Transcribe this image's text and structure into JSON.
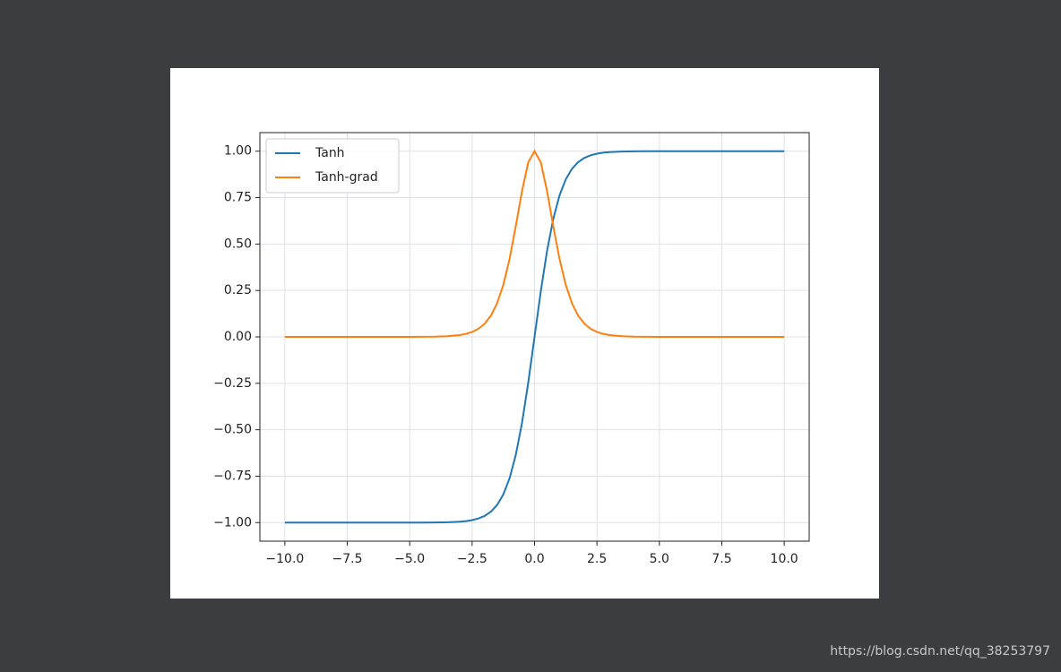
{
  "chart_data": {
    "type": "line",
    "x": [
      -10,
      -9.5,
      -9,
      -8.5,
      -8,
      -7.5,
      -7,
      -6.5,
      -6,
      -5.5,
      -5,
      -4.5,
      -4,
      -3.5,
      -3,
      -2.75,
      -2.5,
      -2.25,
      -2,
      -1.75,
      -1.5,
      -1.25,
      -1,
      -0.75,
      -0.5,
      -0.25,
      0,
      0.25,
      0.5,
      0.75,
      1,
      1.25,
      1.5,
      1.75,
      2,
      2.25,
      2.5,
      2.75,
      3,
      3.5,
      4,
      4.5,
      5,
      5.5,
      6,
      6.5,
      7,
      7.5,
      8,
      8.5,
      9,
      9.5,
      10
    ],
    "series": [
      {
        "name": "Tanh",
        "color": "#1f77b4",
        "values": [
          -1,
          -1,
          -1,
          -1,
          -1,
          -1,
          -1,
          -1,
          -1,
          -1,
          -0.9999,
          -0.9998,
          -0.9993,
          -0.9982,
          -0.9951,
          -0.9919,
          -0.9866,
          -0.978,
          -0.964,
          -0.9414,
          -0.9051,
          -0.8483,
          -0.7616,
          -0.6351,
          -0.4621,
          -0.2449,
          0,
          0.2449,
          0.4621,
          0.6351,
          0.7616,
          0.8483,
          0.9051,
          0.9414,
          0.964,
          0.978,
          0.9866,
          0.9919,
          0.9951,
          0.9982,
          0.9993,
          0.9998,
          0.9999,
          1,
          1,
          1,
          1,
          1,
          1,
          1,
          1,
          1,
          1
        ]
      },
      {
        "name": "Tanh-grad",
        "color": "#ff7f0e",
        "values": [
          0,
          0,
          0,
          0,
          0,
          0,
          0,
          0,
          0,
          0.0001,
          0.0002,
          0.0005,
          0.0013,
          0.0036,
          0.0099,
          0.0162,
          0.0266,
          0.0435,
          0.0707,
          0.1138,
          0.1807,
          0.2803,
          0.42,
          0.5967,
          0.7864,
          0.94,
          1,
          0.94,
          0.7864,
          0.5967,
          0.42,
          0.2803,
          0.1807,
          0.1138,
          0.0707,
          0.0435,
          0.0266,
          0.0162,
          0.0099,
          0.0036,
          0.0013,
          0.0005,
          0.0002,
          0.0001,
          0,
          0,
          0,
          0,
          0,
          0,
          0,
          0,
          0
        ]
      }
    ],
    "xlim": [
      -11,
      11
    ],
    "ylim": [
      -1.1,
      1.1
    ],
    "xticks": [
      {
        "value": -10,
        "label": "−10.0"
      },
      {
        "value": -7.5,
        "label": "−7.5"
      },
      {
        "value": -5,
        "label": "−5.0"
      },
      {
        "value": -2.5,
        "label": "−2.5"
      },
      {
        "value": 0,
        "label": "0.0"
      },
      {
        "value": 2.5,
        "label": "2.5"
      },
      {
        "value": 5,
        "label": "5.0"
      },
      {
        "value": 7.5,
        "label": "7.5"
      },
      {
        "value": 10,
        "label": "10.0"
      }
    ],
    "yticks": [
      {
        "value": -1,
        "label": "−1.00"
      },
      {
        "value": -0.75,
        "label": "−0.75"
      },
      {
        "value": -0.5,
        "label": "−0.50"
      },
      {
        "value": -0.25,
        "label": "−0.25"
      },
      {
        "value": 0,
        "label": "0.00"
      },
      {
        "value": 0.25,
        "label": "0.25"
      },
      {
        "value": 0.5,
        "label": "0.50"
      },
      {
        "value": 0.75,
        "label": "0.75"
      },
      {
        "value": 1,
        "label": "1.00"
      }
    ],
    "grid": true,
    "legend": "upper-left"
  },
  "watermark": "https://blog.csdn.net/qq_38253797"
}
